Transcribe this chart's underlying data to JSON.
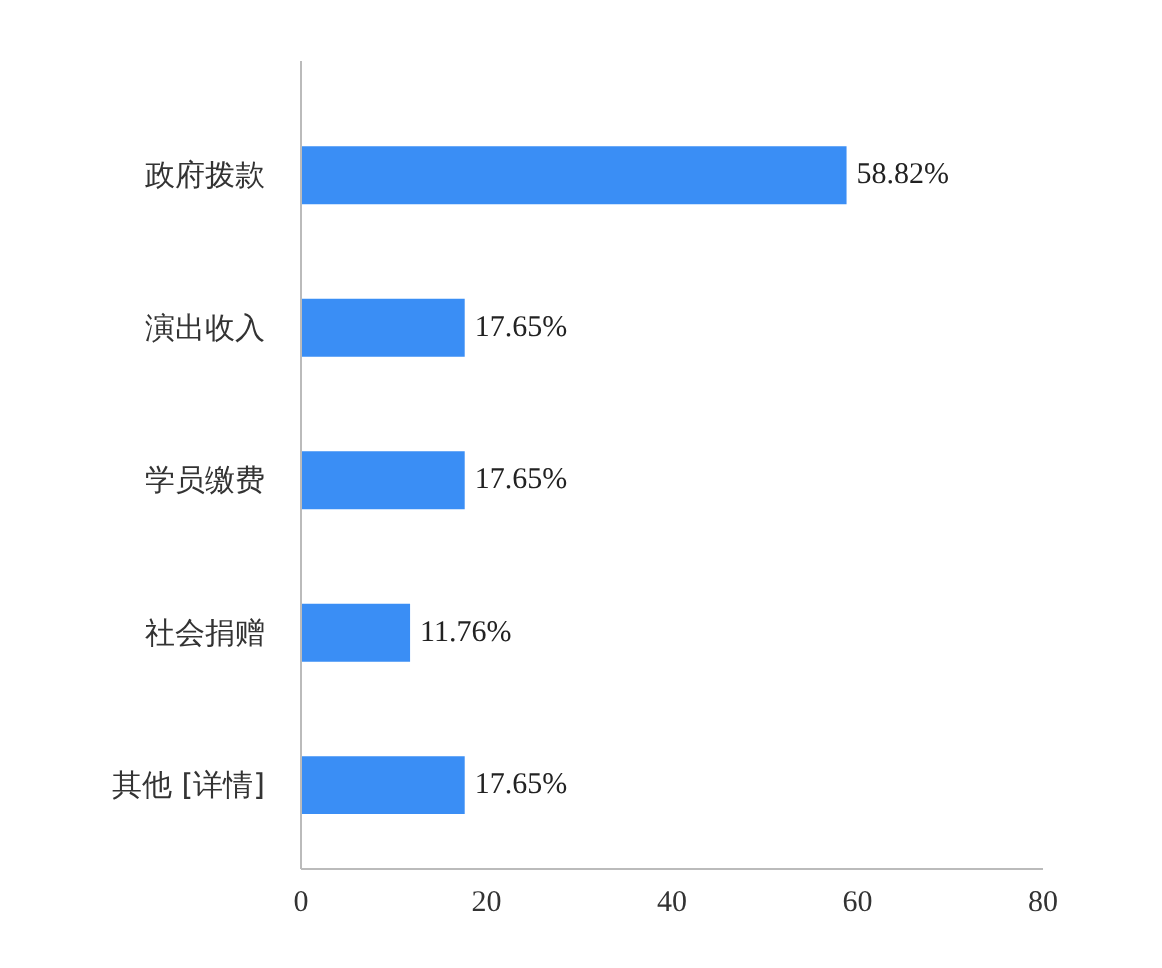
{
  "chart_data": {
    "type": "bar",
    "orientation": "horizontal",
    "categories": [
      "政府拨款",
      "演出收入",
      "学员缴费",
      "社会捐赠",
      "其他 [详情]"
    ],
    "values": [
      58.82,
      17.65,
      17.65,
      11.76,
      17.65
    ],
    "value_labels": [
      "58.82%",
      "17.65%",
      "17.65%",
      "11.76%",
      "17.65%"
    ],
    "color": "#3a8ef5",
    "xlim": [
      0,
      80
    ],
    "xticks": [
      0,
      20,
      40,
      60,
      80
    ]
  }
}
